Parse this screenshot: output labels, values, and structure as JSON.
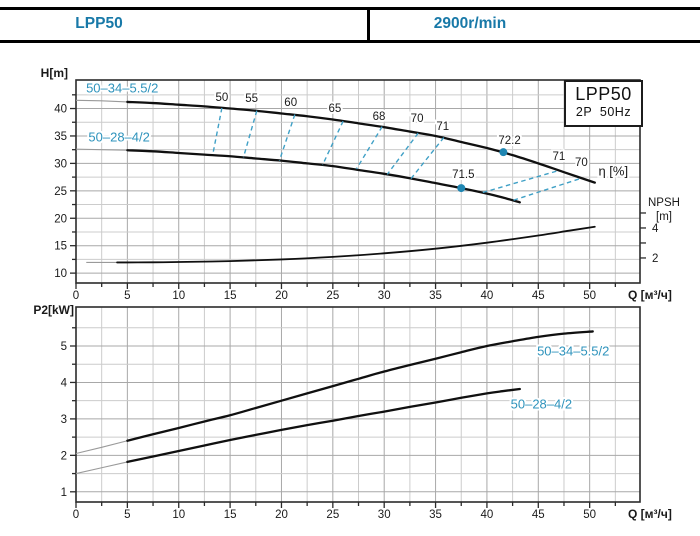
{
  "header": {
    "model": "LPP50",
    "speed": "2900r/min"
  },
  "info_box": {
    "line1": "LPP50",
    "line2": "2P  50Hz"
  },
  "colors": {
    "accent_text": "#1879A8",
    "series_label": "#2E93BC",
    "iso_dash": "#3FA0C6",
    "marker": "#1F86B2",
    "curve": "#101010",
    "grid_minor": "#cccccc",
    "grid_major": "#a8a8a8"
  },
  "chart_data": [
    {
      "type": "line",
      "name": "head-npsh-chart",
      "xlabel": "Q [м³/ч]",
      "ylabel": "H[m]",
      "y2label": [
        "NPSH",
        "[m]"
      ],
      "xlim": [
        0,
        54.9
      ],
      "ylim": [
        8.2,
        45.2
      ],
      "y2lim": [
        0.33,
        13.87
      ],
      "x_tick_labels": [
        0,
        5,
        10,
        15,
        20,
        25,
        30,
        35,
        40,
        45,
        50
      ],
      "y_tick_labels": [
        10,
        15,
        20,
        25,
        30,
        35,
        40
      ],
      "y2_ticks": [
        2,
        3,
        4,
        5
      ],
      "y2_tick_labels": [
        2,
        4
      ],
      "grid": {
        "x_major": [
          5,
          10,
          15,
          20,
          25,
          30,
          35,
          40,
          45,
          50
        ],
        "x_minor": [
          2.5,
          7.5,
          12.5,
          17.5,
          22.5,
          27.5,
          32.5,
          37.5,
          42.5,
          47.5,
          52.5
        ],
        "y_major": [
          10,
          15,
          20,
          25,
          30,
          35,
          40
        ],
        "y_minor": [
          12.5,
          17.5,
          22.5,
          27.5,
          32.5,
          37.5,
          42.5
        ]
      },
      "series": [
        {
          "name": "50–34–5.5/2",
          "axis": "y",
          "faint_before": 4.3,
          "x": [
            0,
            2.5,
            5,
            7.5,
            10,
            12.5,
            15,
            17.5,
            20,
            22.5,
            25,
            27.5,
            30,
            32.5,
            35,
            37.5,
            40,
            42.5,
            45,
            47.5,
            50.5
          ],
          "y": [
            41.5,
            41.4,
            41.2,
            41.0,
            40.7,
            40.4,
            40.0,
            39.6,
            39.1,
            38.6,
            38.0,
            37.3,
            36.6,
            35.8,
            35.0,
            33.9,
            32.8,
            31.5,
            30.0,
            28.4,
            26.5
          ]
        },
        {
          "name": "50–28–4/2",
          "axis": "y",
          "faint_before": 4.0,
          "x": [
            0,
            2.5,
            5,
            7.5,
            10,
            12.5,
            15,
            17.5,
            20,
            22.5,
            25,
            27.5,
            30,
            32.5,
            35,
            37.5,
            40,
            41.5,
            43.2
          ],
          "y": [
            32.6,
            32.5,
            32.4,
            32.2,
            31.9,
            31.6,
            31.3,
            30.9,
            30.5,
            30.0,
            29.5,
            28.8,
            28.1,
            27.3,
            26.4,
            25.5,
            24.5,
            23.8,
            22.9
          ]
        },
        {
          "name": "NPSH",
          "axis": "y2",
          "faint_before": 4.0,
          "x": [
            1,
            4,
            7.5,
            10,
            15,
            20,
            25,
            30,
            35,
            40,
            45,
            48,
            50.5
          ],
          "y": [
            1.7,
            1.7,
            1.71,
            1.73,
            1.79,
            1.9,
            2.07,
            2.31,
            2.62,
            3.02,
            3.5,
            3.82,
            4.08
          ]
        }
      ],
      "efficiency_dashes": [
        [
          14.2,
          40.1,
          13.3,
          31.5
        ],
        [
          17.6,
          39.6,
          16.3,
          31.1
        ],
        [
          21.3,
          38.9,
          19.8,
          30.5
        ],
        [
          26.0,
          37.7,
          24.0,
          29.7
        ],
        [
          29.8,
          36.7,
          27.3,
          29.0
        ],
        [
          33.3,
          35.5,
          30.3,
          28.0
        ],
        [
          35.8,
          34.7,
          32.6,
          27.2
        ],
        [
          39.6,
          24.7,
          47.0,
          28.7
        ],
        [
          42.6,
          23.3,
          49.2,
          27.3
        ]
      ],
      "markers": [
        {
          "x": 41.6,
          "y": 32.05
        },
        {
          "x": 37.5,
          "y": 25.5
        }
      ],
      "annotations": [
        {
          "text": "50–34–5.5/2",
          "x": 4.5,
          "y": 43.7,
          "cls": "series"
        },
        {
          "text": "50–28–4/2",
          "x": 4.2,
          "y": 34.8,
          "cls": "series"
        },
        {
          "text": "50",
          "x": 14.2,
          "y": 41.9,
          "cls": "eff"
        },
        {
          "text": "55",
          "x": 17.1,
          "y": 41.7,
          "cls": "eff"
        },
        {
          "text": "60",
          "x": 20.9,
          "y": 41.0,
          "cls": "eff"
        },
        {
          "text": "65",
          "x": 25.2,
          "y": 39.9,
          "cls": "eff"
        },
        {
          "text": "68",
          "x": 29.5,
          "y": 38.5,
          "cls": "eff"
        },
        {
          "text": "70",
          "x": 33.2,
          "y": 38.1,
          "cls": "eff"
        },
        {
          "text": "71",
          "x": 35.7,
          "y": 36.6,
          "cls": "eff"
        },
        {
          "text": "72.2",
          "x": 42.2,
          "y": 34.1,
          "cls": "eff"
        },
        {
          "text": "71",
          "x": 47.0,
          "y": 31.2,
          "cls": "eff"
        },
        {
          "text": "70",
          "x": 49.2,
          "y": 30.1,
          "cls": "eff"
        },
        {
          "text": "71.5",
          "x": 37.7,
          "y": 27.9,
          "cls": "eff"
        },
        {
          "text": "η [%]",
          "x": 52.3,
          "y": 28.6,
          "cls": "eta"
        }
      ]
    },
    {
      "type": "line",
      "name": "power-chart",
      "xlabel": "Q [м³/ч]",
      "ylabel": "P2[kW]",
      "xlim": [
        0,
        54.9
      ],
      "ylim": [
        0.72,
        6.07
      ],
      "x_tick_labels": [
        0,
        5,
        10,
        15,
        20,
        25,
        30,
        35,
        40,
        45,
        50
      ],
      "y_tick_labels": [
        1,
        2,
        3,
        4,
        5
      ],
      "grid": {
        "x_major": [
          5,
          10,
          15,
          20,
          25,
          30,
          35,
          40,
          45,
          50
        ],
        "x_minor": [
          2.5,
          7.5,
          12.5,
          17.5,
          22.5,
          27.5,
          32.5,
          37.5,
          42.5,
          47.5,
          52.5
        ],
        "y_major": [
          1,
          2,
          3,
          4,
          5
        ],
        "y_minor": [
          1.5,
          2.5,
          3.5,
          4.5,
          5.5
        ]
      },
      "series": [
        {
          "name": "50–34–5.5/2",
          "axis": "y",
          "faint_before": 4.2,
          "x": [
            0,
            2.5,
            5,
            7.5,
            10,
            12.5,
            15,
            17.5,
            20,
            22.5,
            25,
            27.5,
            30,
            32.5,
            35,
            37.5,
            40,
            42.5,
            45,
            47.5,
            50.3
          ],
          "y": [
            2.05,
            2.22,
            2.4,
            2.58,
            2.75,
            2.93,
            3.1,
            3.3,
            3.5,
            3.7,
            3.9,
            4.1,
            4.3,
            4.48,
            4.65,
            4.83,
            5.0,
            5.13,
            5.25,
            5.34,
            5.4
          ]
        },
        {
          "name": "50–28–4/2",
          "axis": "y",
          "faint_before": 3.8,
          "x": [
            0,
            2.5,
            5,
            7.5,
            10,
            12.5,
            15,
            17.5,
            20,
            22.5,
            25,
            27.5,
            30,
            32.5,
            35,
            37.5,
            40,
            41.5,
            43.2
          ],
          "y": [
            1.5,
            1.66,
            1.82,
            1.97,
            2.12,
            2.27,
            2.42,
            2.56,
            2.7,
            2.83,
            2.95,
            3.08,
            3.2,
            3.33,
            3.45,
            3.58,
            3.7,
            3.76,
            3.82
          ]
        }
      ],
      "annotations": [
        {
          "text": "50–34–5.5/2",
          "x": 48.4,
          "y": 4.86,
          "cls": "series"
        },
        {
          "text": "50–28–4/2",
          "x": 45.3,
          "y": 3.41,
          "cls": "series"
        }
      ]
    }
  ]
}
